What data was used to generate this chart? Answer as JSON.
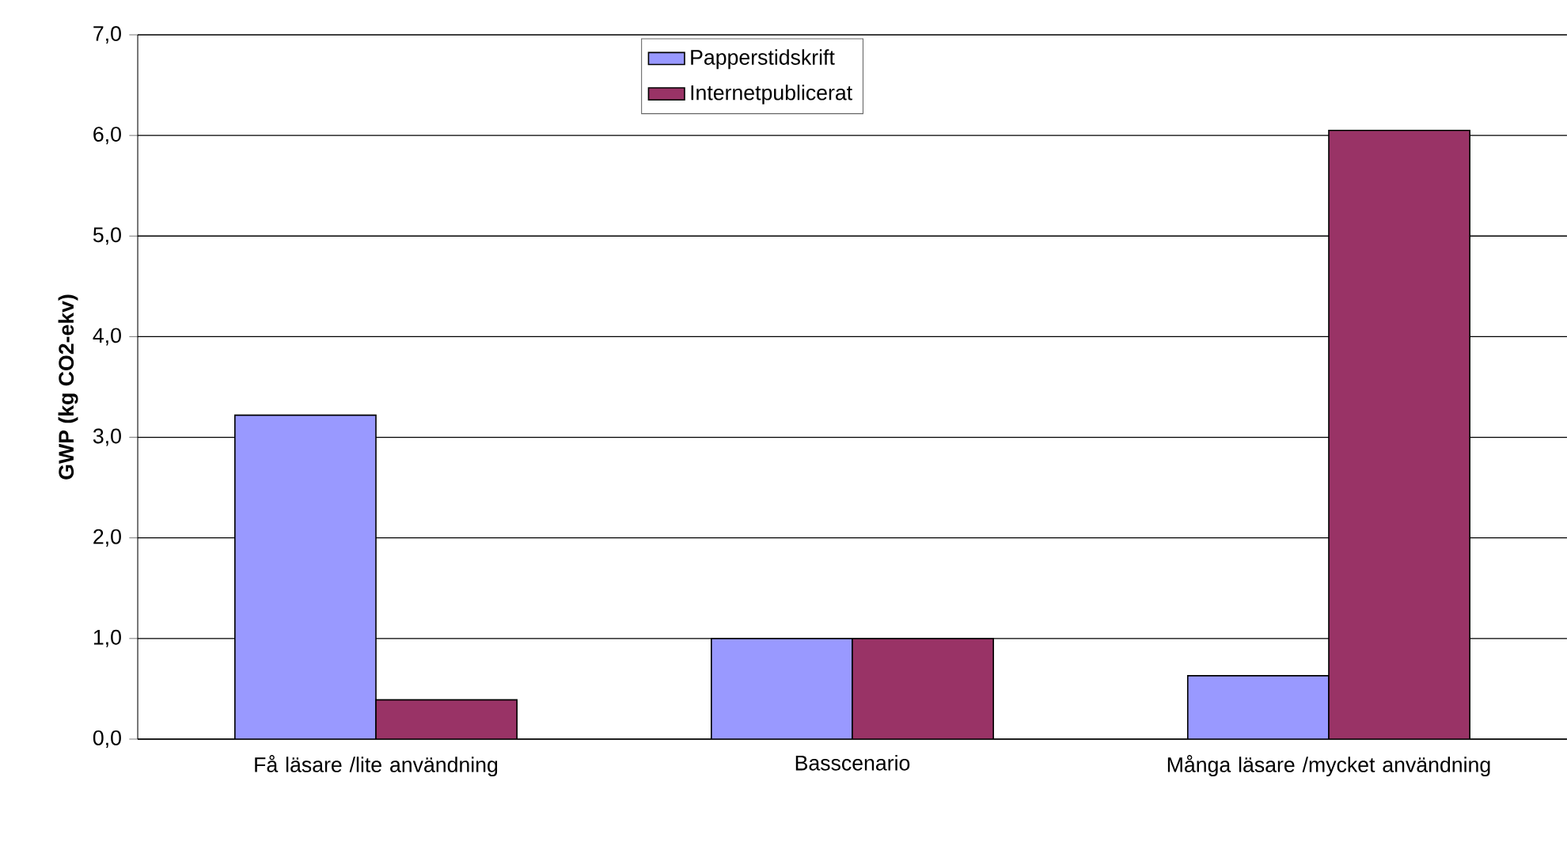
{
  "chart_data": {
    "type": "bar",
    "ylabel": "GWP (kg CO2-ekv)",
    "categories": [
      "Få läsare /lite användning",
      "Basscenario",
      "Många läsare /mycket användning"
    ],
    "series": [
      {
        "name": "Papperstidskrift",
        "color": "#9999ff",
        "values": [
          3.22,
          1.0,
          0.63
        ]
      },
      {
        "name": "Internetpublicerat",
        "color": "#993366",
        "values": [
          0.39,
          1.0,
          6.05
        ]
      }
    ],
    "ylim": [
      0,
      7
    ],
    "yticks": [
      {
        "value": 0,
        "label": "0,0"
      },
      {
        "value": 1,
        "label": "1,0"
      },
      {
        "value": 2,
        "label": "2,0"
      },
      {
        "value": 3,
        "label": "3,0"
      },
      {
        "value": 4,
        "label": "4,0"
      },
      {
        "value": 5,
        "label": "5,0"
      },
      {
        "value": 6,
        "label": "6,0"
      },
      {
        "value": 7,
        "label": "7,0"
      }
    ],
    "grid": "y",
    "legend": "top"
  }
}
